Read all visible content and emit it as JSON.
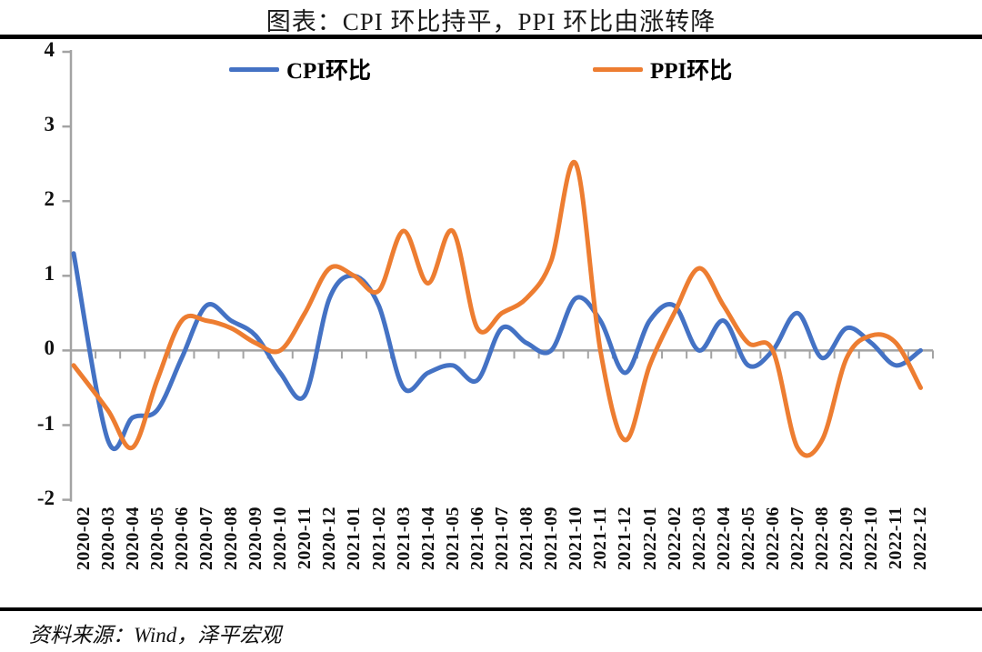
{
  "header": {
    "title": "图表：CPI 环比持平，PPI 环比由涨转降"
  },
  "legend": {
    "items": [
      {
        "label": "CPI环比",
        "color": "#4472C4"
      },
      {
        "label": "PPI环比",
        "color": "#ED7D31"
      }
    ]
  },
  "footer": {
    "source": "资料来源：Wind，泽平宏观"
  },
  "colors": {
    "axis": "#A3A3A3",
    "cpi_line": "#4472C4",
    "ppi_line": "#ED7D31",
    "rule": "#000000"
  },
  "chart_data": {
    "type": "line",
    "smooth": true,
    "title": "图表：CPI 环比持平，PPI 环比由涨转降",
    "xlabel": "",
    "ylabel": "",
    "ylim": [
      -2,
      4
    ],
    "y_ticks": [
      4,
      3,
      2,
      1,
      0,
      -1,
      -2
    ],
    "grid": false,
    "legend_position": "top",
    "x_axis_crosses_at": 0,
    "x_label_position": "low",
    "categories": [
      "2020-02",
      "2020-03",
      "2020-04",
      "2020-05",
      "2020-06",
      "2020-07",
      "2020-08",
      "2020-09",
      "2020-10",
      "2020-11",
      "2020-12",
      "2021-01",
      "2021-02",
      "2021-03",
      "2021-04",
      "2021-05",
      "2021-06",
      "2021-07",
      "2021-08",
      "2021-09",
      "2021-10",
      "2021-11",
      "2021-12",
      "2022-01",
      "2022-02",
      "2022-03",
      "2022-04",
      "2022-05",
      "2022-06",
      "2022-07",
      "2022-08",
      "2022-09",
      "2022-10",
      "2022-11",
      "2022-12"
    ],
    "series": [
      {
        "name": "CPI环比",
        "color": "#4472C4",
        "values": [
          1.3,
          -1.2,
          -0.9,
          -0.8,
          -0.1,
          0.6,
          0.4,
          0.2,
          -0.3,
          -0.6,
          0.7,
          1.0,
          0.6,
          -0.5,
          -0.3,
          -0.2,
          -0.4,
          0.3,
          0.1,
          0.0,
          0.7,
          0.4,
          -0.3,
          0.4,
          0.6,
          0.0,
          0.4,
          -0.2,
          0.0,
          0.5,
          -0.1,
          0.3,
          0.1,
          -0.2,
          0.0
        ]
      },
      {
        "name": "PPI环比",
        "color": "#ED7D31",
        "values": [
          -0.2,
          -0.8,
          -1.3,
          -0.4,
          0.4,
          0.4,
          0.3,
          0.1,
          0.0,
          0.5,
          1.1,
          1.0,
          0.8,
          1.6,
          0.9,
          1.6,
          0.3,
          0.5,
          0.7,
          1.2,
          2.5,
          0.0,
          -1.2,
          -0.2,
          0.5,
          1.1,
          0.6,
          0.1,
          0.0,
          -1.3,
          -1.2,
          -0.1,
          0.2,
          0.1,
          -0.5
        ]
      }
    ]
  }
}
